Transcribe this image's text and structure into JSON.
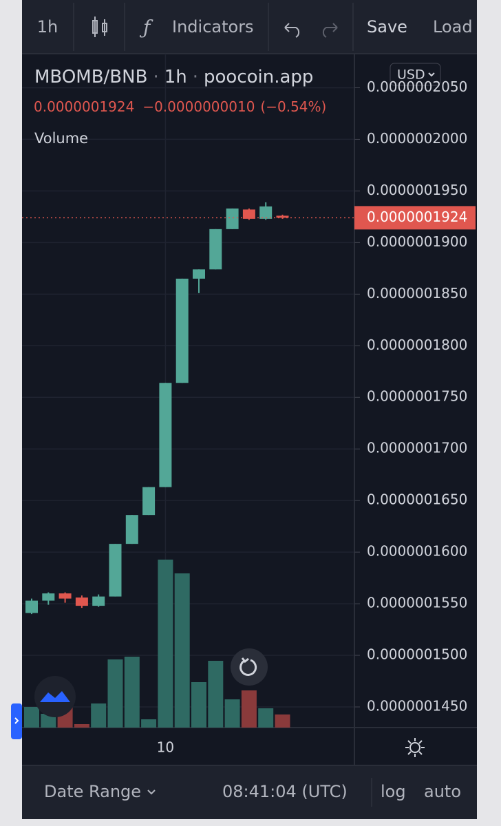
{
  "toolbar": {
    "interval": "1h",
    "indicators": "Indicators",
    "save": "Save",
    "load": "Load"
  },
  "legend": {
    "symbol": "MBOMB/BNB",
    "separator": "·",
    "interval": "1h",
    "source": "poocoin.app",
    "change": "−0.0000000010",
    "change_percent": "(−0.54%)",
    "volume": "Volume"
  },
  "currency": "USD",
  "footer": {
    "date_range": "Date Range",
    "time": "08:41:04 (UTC)",
    "log": "log",
    "auto": "auto"
  },
  "chart_data": {
    "type": "candlestick",
    "categories": [
      null,
      null,
      null,
      null,
      null,
      null,
      null,
      null,
      "10",
      null,
      null,
      null,
      null,
      null,
      null,
      null
    ],
    "open": [
      1.541e-07,
      1.553e-07,
      1.56e-07,
      1.556e-07,
      1.548e-07,
      1.557e-07,
      1.608e-07,
      1.636e-07,
      1.663e-07,
      1.764e-07,
      1.865e-07,
      1.874e-07,
      1.913e-07,
      1.932e-07,
      1.923e-07,
      1.926e-07
    ],
    "high": [
      1.555e-07,
      1.561e-07,
      1.561e-07,
      1.558e-07,
      1.559e-07,
      1.608e-07,
      1.636e-07,
      1.663e-07,
      1.764e-07,
      1.865e-07,
      1.874e-07,
      1.913e-07,
      1.933e-07,
      1.933e-07,
      1.939e-07,
      1.927e-07
    ],
    "low": [
      1.54e-07,
      1.549e-07,
      1.551e-07,
      1.546e-07,
      1.547e-07,
      1.557e-07,
      1.608e-07,
      1.636e-07,
      1.663e-07,
      1.764e-07,
      1.851e-07,
      1.874e-07,
      1.913e-07,
      1.922e-07,
      1.922e-07,
      1.923e-07
    ],
    "close": [
      1.553e-07,
      1.56e-07,
      1.555e-07,
      1.548e-07,
      1.557e-07,
      1.608e-07,
      1.636e-07,
      1.663e-07,
      1.764e-07,
      1.865e-07,
      1.874e-07,
      1.913e-07,
      1.933e-07,
      1.923e-07,
      1.935e-07,
      1.924e-07
    ],
    "volume": [
      30,
      20,
      30,
      5,
      35,
      99,
      103,
      12,
      244,
      224,
      66,
      97,
      41,
      54,
      28,
      19
    ],
    "up_color": "#53a797",
    "down_color": "#e0574f",
    "volume_up_color": "#2f6a63",
    "volume_down_color": "#8a3a3b",
    "last_price": {
      "value": 1.924e-07,
      "label": "0.0000001924"
    },
    "ylim": [
      1.43e-07,
      2.083e-07
    ],
    "yticks": [
      {
        "value": 2.05e-07,
        "label": "0.0000002050"
      },
      {
        "value": 2e-07,
        "label": "0.0000002000"
      },
      {
        "value": 1.95e-07,
        "label": "0.0000001950"
      },
      {
        "value": 1.9e-07,
        "label": "0.0000001900"
      },
      {
        "value": 1.85e-07,
        "label": "0.0000001850"
      },
      {
        "value": 1.8e-07,
        "label": "0.0000001800"
      },
      {
        "value": 1.75e-07,
        "label": "0.0000001750"
      },
      {
        "value": 1.7e-07,
        "label": "0.0000001700"
      },
      {
        "value": 1.65e-07,
        "label": "0.0000001650"
      },
      {
        "value": 1.6e-07,
        "label": "0.0000001600"
      },
      {
        "value": 1.55e-07,
        "label": "0.0000001550"
      },
      {
        "value": 1.5e-07,
        "label": "0.0000001500"
      },
      {
        "value": 1.45e-07,
        "label": "0.0000001450"
      }
    ],
    "grid": true
  }
}
